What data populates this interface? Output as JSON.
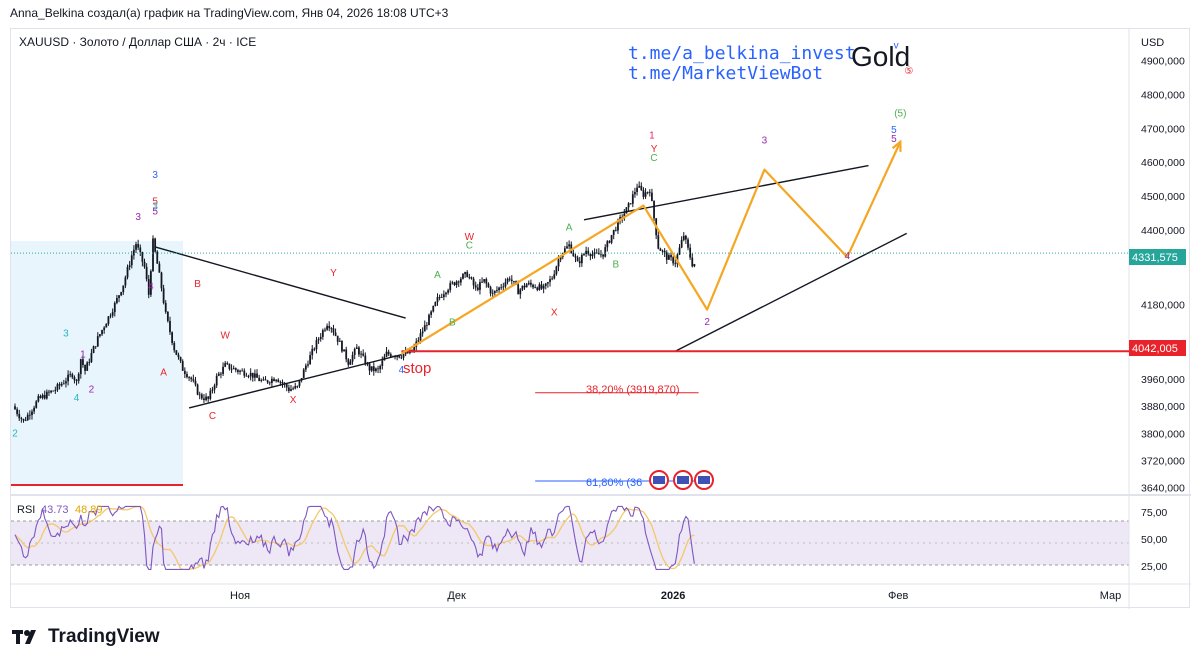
{
  "header": {
    "caption": "Anna_Belkina создал(а) график на TradingView.com, Янв 04, 2026 18:08 UTC+3"
  },
  "symbol": {
    "title": "XAUUSD · Золото / Доллар США · 2ч · ICE",
    "currency": "USD"
  },
  "branding": {
    "link1": "t.me/a_belkina_invest",
    "link2": "t.me/MarketViewBot",
    "gold_title": "Gold",
    "footer_logo": "TradingView",
    "footer_icon": "tradingview-logo-icon"
  },
  "annotations": {
    "stop": "stop",
    "fib_38": "38,20% (3919,870)",
    "fib_61": "61,80% (36"
  },
  "colors": {
    "candle": "#131722",
    "forecast": "#f5a623",
    "stop_line": "#e8232b",
    "fib38": "#e8232b",
    "fib61": "#2962ff",
    "rsi_line": "#7e57c2",
    "rsi_ma": "#f5c86a",
    "rsi_band": "#ede7f6",
    "box_fill": "#e8f5fc",
    "current_price": "#26a69a",
    "link_color": "#2962ff"
  },
  "price_labels": {
    "current": "4331,575",
    "stop": "4042,005"
  },
  "wave_labels": [
    {
      "text": "2",
      "t": 0,
      "p": 3790,
      "color": "#26b5c8"
    },
    {
      "text": "4",
      "t": 29,
      "p": 3895,
      "color": "#26b5c8"
    },
    {
      "text": "3",
      "t": 24,
      "p": 4086,
      "color": "#26b5c8"
    },
    {
      "text": "1",
      "t": 32,
      "p": 4024,
      "color": "#9c27b0"
    },
    {
      "text": "2",
      "t": 36,
      "p": 3920,
      "color": "#9c27b0"
    },
    {
      "text": "3",
      "t": 58,
      "p": 4430,
      "color": "#9c27b0"
    },
    {
      "text": "4",
      "t": 64,
      "p": 4225,
      "color": "#9c27b0"
    },
    {
      "text": "3",
      "t": 66,
      "p": 4553,
      "color": "#2962ff"
    },
    {
      "text": "5",
      "t": 66,
      "p": 4475,
      "color": "#e8232b"
    },
    {
      "text": "3",
      "t": 66,
      "p": 4460,
      "color": "#26b5c8"
    },
    {
      "text": "5",
      "t": 66,
      "p": 4445,
      "color": "#9c27b0"
    },
    {
      "text": "B",
      "t": 86,
      "p": 4232,
      "color": "#e8232b"
    },
    {
      "text": "A",
      "t": 70,
      "p": 3970,
      "color": "#e8232b"
    },
    {
      "text": "C",
      "t": 93,
      "p": 3842,
      "color": "#e8232b"
    },
    {
      "text": "W",
      "t": 99,
      "p": 4080,
      "color": "#e8232b"
    },
    {
      "text": "X",
      "t": 131,
      "p": 3890,
      "color": "#e8232b"
    },
    {
      "text": "Y",
      "t": 150,
      "p": 4264,
      "color": "#e8232b"
    },
    {
      "text": "4",
      "t": 182,
      "p": 3978,
      "color": "#2962ff"
    },
    {
      "text": "A",
      "t": 199,
      "p": 4258,
      "color": "#4caf50"
    },
    {
      "text": "B",
      "t": 206,
      "p": 4118,
      "color": "#4caf50"
    },
    {
      "text": "W",
      "t": 214,
      "p": 4370,
      "color": "#e8232b"
    },
    {
      "text": "C",
      "t": 214,
      "p": 4345,
      "color": "#4caf50"
    },
    {
      "text": "X",
      "t": 254,
      "p": 4148,
      "color": "#e8232b"
    },
    {
      "text": "A",
      "t": 261,
      "p": 4398,
      "color": "#4caf50"
    },
    {
      "text": "B",
      "t": 283,
      "p": 4290,
      "color": "#4caf50"
    },
    {
      "text": "1",
      "t": 300,
      "p": 4670,
      "color": "#e91e63"
    },
    {
      "text": "Y",
      "t": 301,
      "p": 4630,
      "color": "#e8232b"
    },
    {
      "text": "C",
      "t": 301,
      "p": 4603,
      "color": "#4caf50"
    },
    {
      "text": "2",
      "t": 326,
      "p": 4120,
      "color": "#9c27b0"
    },
    {
      "text": "3",
      "t": 353,
      "p": 4655,
      "color": "#9c27b0"
    },
    {
      "text": "4",
      "t": 392,
      "p": 4315,
      "color": "#9c27b0"
    },
    {
      "text": "(5)",
      "t": 417,
      "p": 4735,
      "color": "#4caf50"
    },
    {
      "text": "5",
      "t": 414,
      "p": 4686,
      "color": "#2962ff"
    },
    {
      "text": "5",
      "t": 414,
      "p": 4660,
      "color": "#9c27b0"
    },
    {
      "text": "v",
      "t": 415,
      "p": 4935,
      "color": "#2962ff"
    },
    {
      "text": "⑤",
      "t": 421,
      "p": 4860,
      "color": "#e8232b"
    }
  ],
  "chart_data": {
    "type": "candlestick",
    "title": "XAUUSD · Золото / Доллар США · 2ч · ICE",
    "symbol": "XAUUSD",
    "timeframe": "2ч",
    "price_axis": {
      "ticks": [
        4900,
        4800,
        4700,
        4600,
        4500,
        4400,
        4180,
        3960,
        3880,
        3800,
        3720,
        3640
      ],
      "tick_labels": [
        "4900,000",
        "4800,000",
        "4700,000",
        "4600,000",
        "4500,000",
        "4400,000",
        "4180,000",
        "3960,000",
        "3880,000",
        "3800,000",
        "3720,000",
        "3640,000"
      ],
      "range": [
        3618,
        4993
      ]
    },
    "time_axis": {
      "labels": [
        "Ноя",
        "Дек",
        "2026",
        "Фев",
        "Мар"
      ],
      "label_index": [
        106,
        208,
        310,
        416,
        516
      ]
    },
    "current_price": 4331.575,
    "stop_level": 4042.005,
    "fib_levels": [
      {
        "label": "38,20%",
        "price": 3919.87
      },
      {
        "label": "61,80%",
        "price": 3660
      }
    ],
    "series_anchors": {
      "t": [
        0,
        5,
        12,
        20,
        28,
        30,
        32,
        34,
        38,
        40,
        44,
        48,
        52,
        56,
        58,
        62,
        64,
        66,
        68,
        70,
        72,
        76,
        80,
        84,
        88,
        92,
        96,
        100,
        106,
        112,
        118,
        124,
        130,
        134,
        138,
        144,
        148,
        150,
        154,
        158,
        162,
        168,
        172,
        176,
        182,
        188,
        192,
        196,
        200,
        204,
        210,
        214,
        218,
        222,
        226,
        230,
        234,
        238,
        242,
        246,
        250,
        254,
        258,
        262,
        266,
        270,
        274,
        278,
        282,
        286,
        290,
        294,
        297,
        300,
        304,
        308,
        312,
        316,
        320
      ],
      "price": [
        3880,
        3835,
        3900,
        3930,
        3975,
        3950,
        4020,
        3985,
        4050,
        4080,
        4130,
        4180,
        4240,
        4325,
        4360,
        4290,
        4210,
        4365,
        4300,
        4230,
        4150,
        4050,
        3990,
        3960,
        3910,
        3900,
        3965,
        4000,
        3985,
        3975,
        3950,
        3965,
        3930,
        3935,
        4000,
        4080,
        4125,
        4115,
        4065,
        4010,
        4050,
        3990,
        3985,
        4035,
        4030,
        4040,
        4090,
        4140,
        4195,
        4225,
        4255,
        4270,
        4225,
        4250,
        4210,
        4235,
        4260,
        4220,
        4240,
        4235,
        4225,
        4260,
        4330,
        4355,
        4300,
        4340,
        4325,
        4330,
        4385,
        4430,
        4470,
        4530,
        4505,
        4520,
        4350,
        4320,
        4305,
        4385,
        4300
      ]
    },
    "forecast_path": {
      "t": [
        182,
        296,
        326,
        353,
        392,
        417
      ],
      "price": [
        4035,
        4472,
        4165,
        4578,
        4320,
        4660
      ],
      "color": "#f5a623"
    },
    "trendlines": [
      {
        "name": "upper-channel",
        "t": [
          268,
          402
        ],
        "price": [
          4430,
          4590
        ]
      },
      {
        "name": "lower-channel",
        "t": [
          311,
          420
        ],
        "price": [
          4042,
          4390
        ]
      },
      {
        "name": "triangle-top",
        "t": [
          66,
          184
        ],
        "price": [
          4350,
          4140
        ]
      },
      {
        "name": "triangle-bottom",
        "t": [
          82,
          182
        ],
        "price": [
          3875,
          4032
        ]
      }
    ],
    "rsi": {
      "label": "RSI",
      "value": 43.73,
      "ma_value": 48.89,
      "ticks": [
        75,
        50,
        25
      ],
      "tick_labels": [
        "75,00",
        "50,00",
        "25,00"
      ],
      "band": [
        30,
        70
      ],
      "range": [
        15,
        85
      ]
    }
  }
}
